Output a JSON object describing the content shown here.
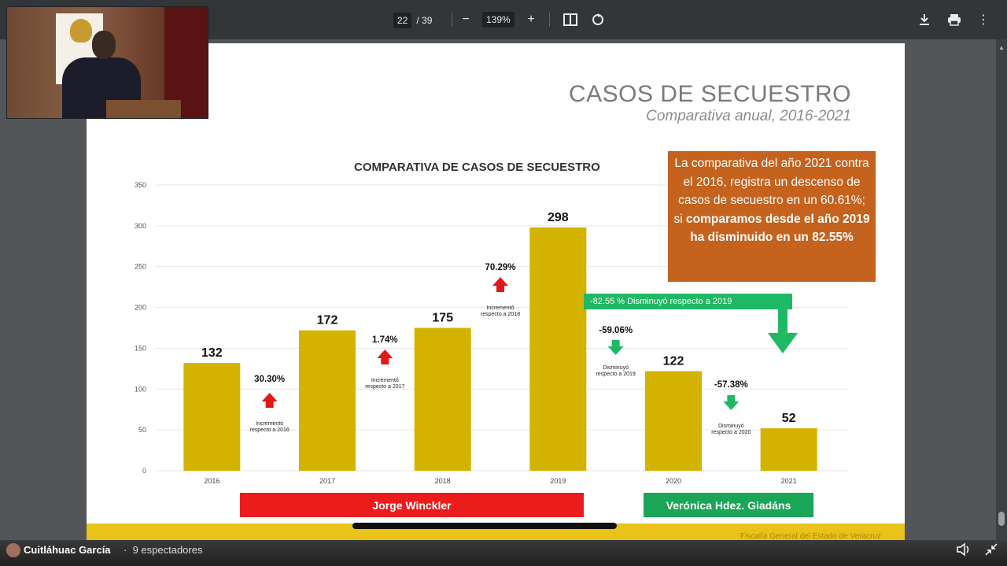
{
  "toolbar": {
    "page_current": "22",
    "page_sep": "/",
    "page_total": "39",
    "zoom_out_icon": "minus-icon",
    "zoom_value": "139%",
    "zoom_in_icon": "plus-icon",
    "fit_icon": "fit-page-icon",
    "rotate_icon": "rotate-icon",
    "download_icon": "download-icon",
    "print_icon": "print-icon",
    "menu_icon": "more-vert-icon"
  },
  "slide": {
    "title": "CASOS DE SECUESTRO",
    "subtitle": "Comparativa anual, 2016-2021",
    "footer": "Fiscalía General del Estado de Veracruz"
  },
  "callout": {
    "line_normal": "La comparativa del año 2021 contra el 2016, registra un descenso de casos de secuestro en un 60.61%; si",
    "line_bold": "comparamos desde el año 2019 ha disminuido en un 82.55%"
  },
  "green_banner": "-82.55 % Disminuyó respecto a 2019",
  "names": {
    "red": "Jorge Winckler",
    "green": "Verónica Hdez. Giadáns"
  },
  "annotations": [
    {
      "pct": "30.30%",
      "text1": "Incrementó",
      "text2": "respecto a 2016",
      "dir": "up"
    },
    {
      "pct": "1.74%",
      "text1": "Incrementó",
      "text2": "respecto a 2017",
      "dir": "up"
    },
    {
      "pct": "70.29%",
      "text1": "Incrementó",
      "text2": "respecto a 2018",
      "dir": "up"
    },
    {
      "pct": "-59.06%",
      "text1": "Disminuyó",
      "text2": "respecto a 2019",
      "dir": "down"
    },
    {
      "pct": "-57.38%",
      "text1": "Disminuyó",
      "text2": "respecto a 2020",
      "dir": "down"
    }
  ],
  "chart_data": {
    "type": "bar",
    "title": "COMPARATIVA DE CASOS DE SECUESTRO",
    "categories": [
      "2016",
      "2017",
      "2018",
      "2019",
      "2020",
      "2021"
    ],
    "values": [
      132,
      172,
      175,
      298,
      122,
      52
    ],
    "ylim": [
      0,
      350
    ],
    "yticks": [
      0,
      50,
      100,
      150,
      200,
      250,
      300,
      350
    ],
    "bar_color": "#d4b200",
    "grid": true
  },
  "bottom_bar": {
    "channel": "Cuitláhuac García",
    "dot": "·",
    "viewers": "9 espectadores",
    "volume_icon": "volume-icon",
    "collapse_icon": "collapse-icon"
  }
}
